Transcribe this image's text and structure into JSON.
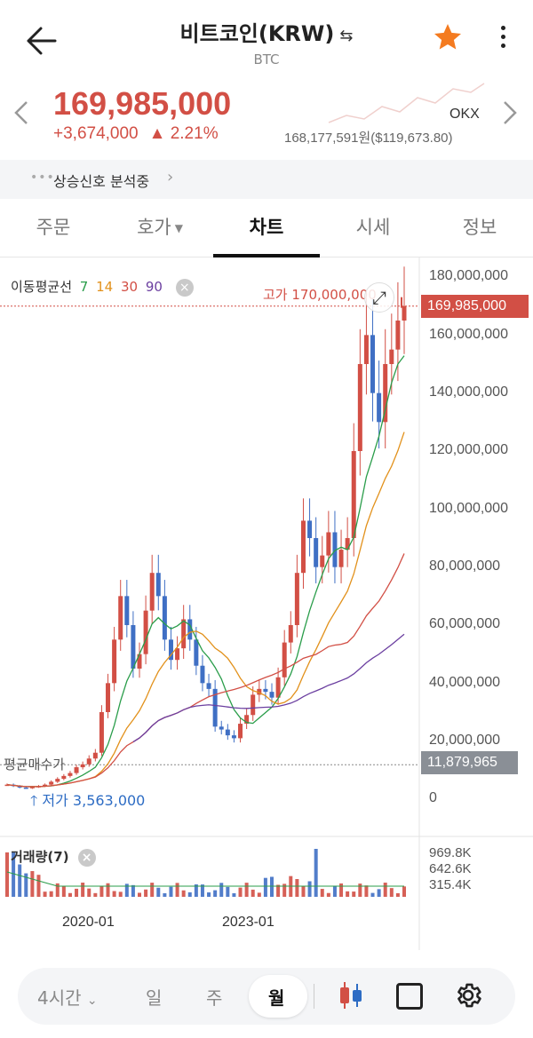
{
  "header": {
    "title": "비트코인(KRW)",
    "swap_icon": "⇆",
    "symbol": "BTC",
    "back_icon": "arrow-left-icon",
    "star_icon": "star-icon",
    "more_icon": "more-vertical-icon"
  },
  "price": {
    "current": "169,985,000",
    "change": "+3,674,000",
    "change_pct": "▲ 2.21%",
    "exchange": "OKX",
    "exchange_price": "168,177,591원($119,673.80)",
    "color_up": "#d24f45"
  },
  "signal": {
    "text": "상승신호 분석중"
  },
  "tabs": [
    {
      "label": "주문"
    },
    {
      "label": "호가"
    },
    {
      "label": "차트"
    },
    {
      "label": "시세"
    },
    {
      "label": "정보"
    }
  ],
  "chart": {
    "ma_label": "이동평균선",
    "ma_periods": [
      "7",
      "14",
      "30",
      "90"
    ],
    "high_label": "고가 170,000,000",
    "low_label": "저가 3,563,000",
    "avg_label": "평균매수가",
    "current_box": "169,985,000",
    "avg_box": "11,879,965",
    "volume_label": "거래량(7)",
    "y_labels": [
      "180,000,000",
      "160,000,000",
      "140,000,000",
      "120,000,000",
      "100,000,000",
      "80,000,000",
      "60,000,000",
      "40,000,000",
      "20,000,000",
      "0"
    ],
    "vol_labels": [
      "969.8K",
      "642.6K",
      "315.4K"
    ],
    "x_labels": [
      "2020-01",
      "2023-01"
    ]
  },
  "chart_data": {
    "type": "candlestick",
    "interval": "monthly",
    "ylim": [
      0,
      180000000
    ],
    "high": 170000000,
    "low": 3563000,
    "last": 169985000,
    "avg_buy_price": 11879965,
    "series": [
      {
        "name": "7",
        "color": "#2a9d4a"
      },
      {
        "name": "14",
        "color": "#e2911b"
      },
      {
        "name": "30",
        "color": "#d24f45"
      },
      {
        "name": "90",
        "color": "#6b3fa0"
      }
    ]
  },
  "toolbar": {
    "interval": "4시간",
    "day": "일",
    "week": "주",
    "month": "월"
  }
}
